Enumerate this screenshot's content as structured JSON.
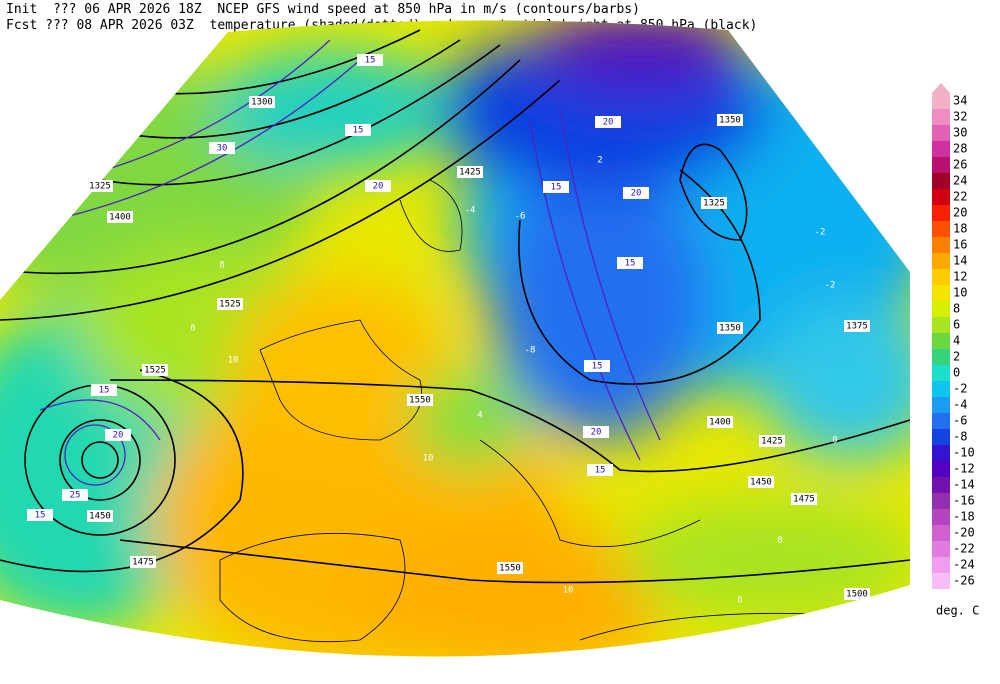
{
  "header": {
    "init_line": "Init  ??? 06 APR 2026 18Z  NCEP GFS wind speed at 850 hPa in m/s (contours/barbs)",
    "fcst_line": "Fcst ??? 08 APR 2026 03Z  temperature (shaded/dotted) and geopotential height at 850 hPa (black)"
  },
  "colorbar": {
    "values": [
      34,
      32,
      30,
      28,
      26,
      24,
      22,
      20,
      18,
      16,
      14,
      12,
      10,
      8,
      6,
      4,
      2,
      0,
      -2,
      -4,
      -6,
      -8,
      -10,
      -12,
      -14,
      -16,
      -18,
      -20,
      -22,
      -24,
      -26
    ],
    "colors": [
      "#f4b0c4",
      "#f08cc0",
      "#e060b4",
      "#d030a0",
      "#b81070",
      "#a00028",
      "#d00010",
      "#f82000",
      "#ff5000",
      "#ff8000",
      "#ffa800",
      "#ffcc00",
      "#f4e400",
      "#d4f000",
      "#a8e420",
      "#6cd840",
      "#34d47c",
      "#1ce0cc",
      "#10c4f0",
      "#1c9cf0",
      "#2070f0",
      "#1444e0",
      "#3414d0",
      "#5400c0",
      "#7410b0",
      "#9430b0",
      "#b444c0",
      "#d060d0",
      "#e07ce0",
      "#f09cf0",
      "#f8bcf8"
    ],
    "unit": "deg. C"
  },
  "map": {
    "height_labels": [
      1350,
      1325,
      1400,
      1425,
      1450,
      1475,
      1500,
      1550,
      1525,
      1300,
      1375,
      1450,
      1475,
      1525,
      1550,
      1350,
      1325,
      1400,
      1425
    ],
    "wind_labels": [
      15,
      15,
      20,
      15,
      20,
      15,
      20,
      15,
      20,
      25,
      30,
      15,
      15,
      20,
      15
    ],
    "temp_labels": [
      -8,
      -6,
      -4,
      -2,
      0,
      2,
      4,
      6,
      8,
      10,
      10,
      10,
      8,
      6,
      -2
    ]
  }
}
